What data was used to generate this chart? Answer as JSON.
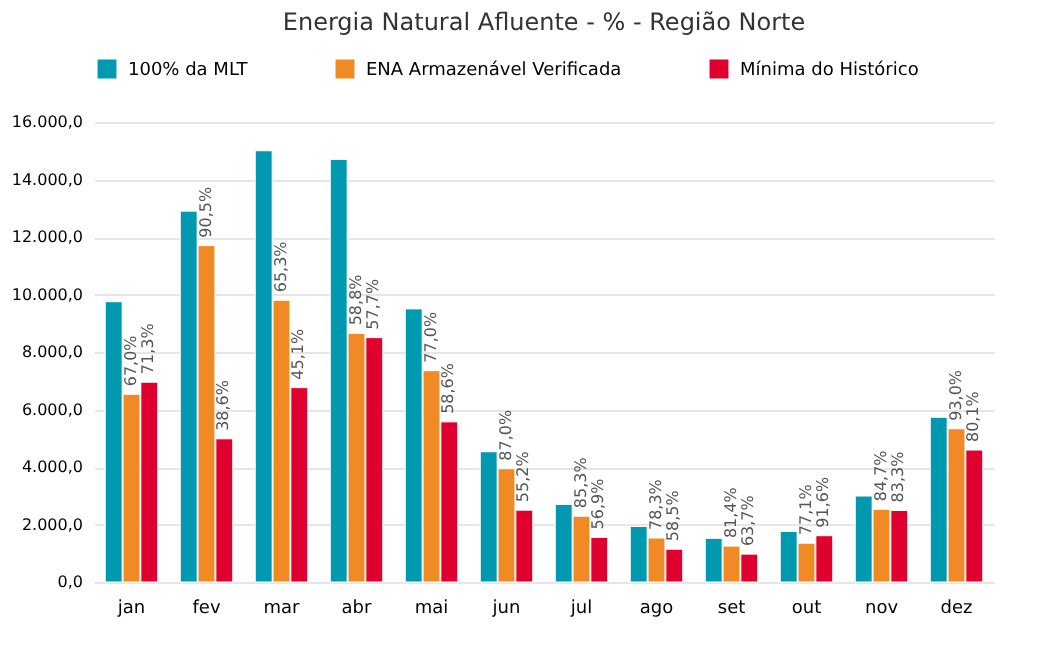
{
  "chart_data": {
    "type": "bar",
    "title": "Energia Natural Afluente - % - Região Norte",
    "categories": [
      "jan",
      "fev",
      "mar",
      "abr",
      "mai",
      "jun",
      "jul",
      "ago",
      "set",
      "out",
      "nov",
      "dez"
    ],
    "series": [
      {
        "name": "100% da MLT",
        "color": "#0099b0",
        "values": [
          9750,
          12900,
          15000,
          14700,
          9500,
          4530,
          2700,
          1930,
          1520,
          1760,
          2990,
          5730
        ]
      },
      {
        "name": "ENA Armazenável Verificada",
        "color": "#f08a24",
        "values": [
          6530,
          11700,
          9800,
          8650,
          7350,
          3940,
          2290,
          1530,
          1250,
          1350,
          2530,
          5330
        ]
      },
      {
        "name": "Mínima do Histórico",
        "color": "#e0002f",
        "values": [
          6950,
          4980,
          6760,
          8500,
          5570,
          2500,
          1550,
          1140,
          970,
          1610,
          2490,
          4590
        ]
      }
    ],
    "annotations": [
      {
        "text": "67,0%",
        "x": "jan",
        "y": 6530
      },
      {
        "text": "90,5%",
        "x": "fev",
        "y": 11700
      },
      {
        "text": "65,3%",
        "x": "mar",
        "y": 9800
      },
      {
        "text": "58,8%",
        "x": "abr",
        "y": 8650
      },
      {
        "text": "77,0%",
        "x": "mai",
        "y": 7350
      },
      {
        "text": "87,0%",
        "x": "jun",
        "y": 3940
      },
      {
        "text": "85,3%",
        "x": "jul",
        "y": 2290
      },
      {
        "text": "78,3%",
        "x": "ago",
        "y": 1530
      },
      {
        "text": "81,4%",
        "x": "set",
        "y": 1250
      },
      {
        "text": "77,1%",
        "x": "out",
        "y": 1350
      },
      {
        "text": "84,7%",
        "x": "nov",
        "y": 2530
      },
      {
        "text": "93,0%",
        "x": "dez",
        "y": 5330
      },
      {
        "text": "71,3%",
        "x": "jan",
        "y": 6950
      },
      {
        "text": "38,6%",
        "x": "fev",
        "y": 4980
      },
      {
        "text": "45,1%",
        "x": "mar",
        "y": 6760
      },
      {
        "text": "57,7%",
        "x": "abr",
        "y": 8500
      },
      {
        "text": "58,6%",
        "x": "mai",
        "y": 5570
      },
      {
        "text": "55,2%",
        "x": "jun",
        "y": 2500
      },
      {
        "text": "56,9%",
        "x": "jul",
        "y": 1550
      },
      {
        "text": "58,5%",
        "x": "ago",
        "y": 1140
      },
      {
        "text": "63,7%",
        "x": "set",
        "y": 970
      },
      {
        "text": "91,6%",
        "x": "out",
        "y": 1610
      },
      {
        "text": "83,3%",
        "x": "nov",
        "y": 2490
      },
      {
        "text": "80,1%",
        "x": "dez",
        "y": 4590
      }
    ],
    "ylim": [
      0,
      16000
    ],
    "yticks": [
      {
        "value": 0,
        "label": "0,0"
      },
      {
        "value": 2000,
        "label": "2.000,0"
      },
      {
        "value": 4000,
        "label": "4.000,0"
      },
      {
        "value": 6000,
        "label": "6.000,0"
      },
      {
        "value": 8000,
        "label": "8.000,0"
      },
      {
        "value": 10000,
        "label": "10.000,0"
      },
      {
        "value": 12000,
        "label": "12.000,0"
      },
      {
        "value": 14000,
        "label": "14.000,0"
      },
      {
        "value": 16000,
        "label": "16.000,0"
      }
    ],
    "grid": "y",
    "legend": "top"
  }
}
